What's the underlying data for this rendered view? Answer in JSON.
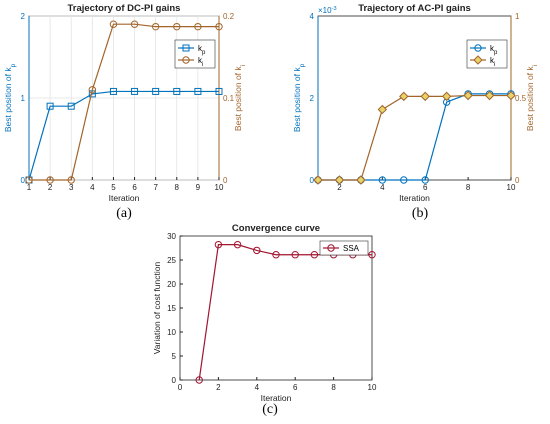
{
  "chart_data": [
    {
      "id": "a",
      "panel_label": "(a)",
      "type": "line",
      "title": "Trajectory of DC-PI gains",
      "xlabel": "Iteration",
      "ylabel_left": "Best position of k_p",
      "ylabel_right": "Best position of k_i",
      "x": [
        1,
        2,
        3,
        4,
        5,
        6,
        7,
        8,
        9,
        10
      ],
      "xlim": [
        1,
        10
      ],
      "ylim_left": [
        0,
        2
      ],
      "ylim_right": [
        0,
        0.2
      ],
      "yticks_left": [
        "0",
        "1",
        "2"
      ],
      "yticks_right": [
        "0",
        "0.1",
        "0.2"
      ],
      "grid": true,
      "legend_position": "upper-right",
      "series": [
        {
          "name": "k_p",
          "axis": "left",
          "color": "#0072BD",
          "marker": "square",
          "values": [
            0,
            0.9,
            0.9,
            1.05,
            1.08,
            1.08,
            1.08,
            1.08,
            1.08,
            1.08
          ]
        },
        {
          "name": "k_i",
          "axis": "right",
          "color": "#A2642A",
          "marker": "circle",
          "values": [
            0,
            0,
            0,
            0.11,
            0.19,
            0.19,
            0.187,
            0.187,
            0.187,
            0.187
          ]
        }
      ]
    },
    {
      "id": "b",
      "panel_label": "(b)",
      "type": "line",
      "title": "Trajectory of AC-PI gains",
      "xlabel": "Iteration",
      "ylabel_left": "Best position of k_p",
      "ylabel_right": "Best position of k_i",
      "left_exponent": "×10^-3",
      "x": [
        1,
        2,
        3,
        4,
        5,
        6,
        7,
        8,
        9,
        10
      ],
      "xlim": [
        1,
        10
      ],
      "xticks": [
        2,
        4,
        6,
        8,
        10
      ],
      "ylim_left": [
        0,
        4
      ],
      "ylim_right": [
        0,
        1
      ],
      "yticks_left": [
        "0",
        "2",
        "4"
      ],
      "yticks_right": [
        "0",
        "0.5",
        "1"
      ],
      "grid": false,
      "legend_position": "upper-right",
      "series": [
        {
          "name": "k_p",
          "axis": "left",
          "color": "#0072BD",
          "marker": "circle",
          "values": [
            0,
            0,
            0,
            0,
            0,
            0,
            1.9,
            2.1,
            2.1,
            2.1
          ]
        },
        {
          "name": "k_i",
          "axis": "right",
          "color": "#A2642A",
          "marker": "diamond",
          "values": [
            0,
            0,
            0,
            0.43,
            0.51,
            0.51,
            0.51,
            0.515,
            0.515,
            0.515
          ]
        }
      ]
    },
    {
      "id": "c",
      "panel_label": "(c)",
      "type": "line",
      "title": "Convergence curve",
      "xlabel": "Iteration",
      "ylabel": "Variation of cost function",
      "x": [
        1,
        2,
        3,
        4,
        5,
        6,
        7,
        8,
        9,
        10
      ],
      "xlim": [
        0,
        10
      ],
      "xticks": [
        0,
        2,
        4,
        6,
        8,
        10
      ],
      "ylim": [
        0,
        30
      ],
      "yticks": [
        0,
        5,
        10,
        15,
        20,
        25,
        30
      ],
      "grid": false,
      "legend_position": "upper-right",
      "series": [
        {
          "name": "SSA",
          "color": "#A2142F",
          "marker": "circle",
          "values": [
            0,
            28.2,
            28.2,
            27,
            26.1,
            26.1,
            26.1,
            26.1,
            26.1,
            26.1
          ]
        }
      ]
    }
  ]
}
